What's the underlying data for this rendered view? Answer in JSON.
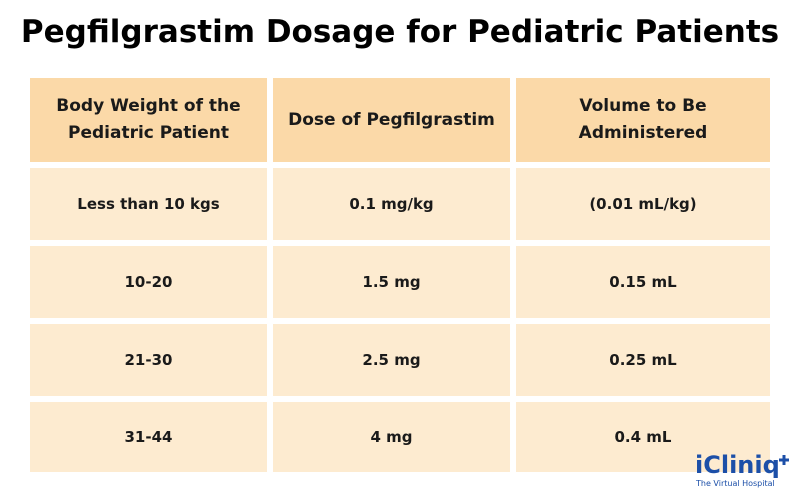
{
  "title": "Pegfilgrastim Dosage for Pediatric Patients",
  "table": {
    "headers": [
      [
        "Body Weight of the",
        "Pediatric Patient"
      ],
      [
        "Dose of Pegfilgrastim"
      ],
      [
        "Volume to Be",
        "Administered"
      ]
    ],
    "rows": [
      [
        "Less than 10 kgs",
        "0.1 mg/kg",
        "(0.01 mL/kg)"
      ],
      [
        "10-20",
        "1.5 mg",
        "0.15 mL"
      ],
      [
        "21-30",
        "2.5 mg",
        "0.25 mL"
      ],
      [
        "31-44",
        "4 mg",
        "0.4 mL"
      ]
    ]
  },
  "logo": {
    "name": "iCliniq",
    "tagline": "The Virtual Hospital"
  },
  "colors": {
    "header_bg": "#fbd9a8",
    "row_bg": "#fdebd0",
    "logo_blue": "#1c4fa8"
  }
}
